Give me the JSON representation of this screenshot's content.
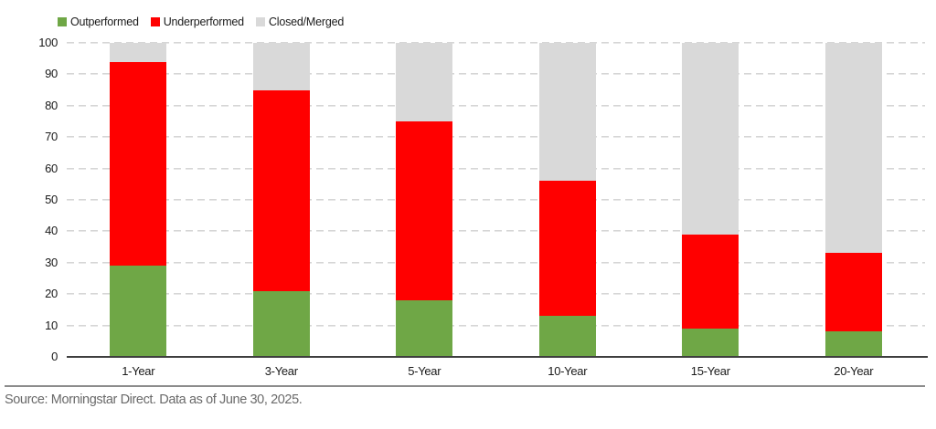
{
  "chart_data": {
    "type": "bar",
    "stacked": true,
    "title": "",
    "xlabel": "",
    "ylabel": "",
    "categories": [
      "1-Year",
      "3-Year",
      "5-Year",
      "10-Year",
      "15-Year",
      "20-Year"
    ],
    "series": [
      {
        "name": "Outperformed",
        "color": "#6FA746",
        "values": [
          29,
          21,
          18,
          13,
          9,
          8
        ]
      },
      {
        "name": "Underperformed",
        "color": "#FF0000",
        "values": [
          65,
          64,
          57,
          43,
          30,
          25
        ]
      },
      {
        "name": "Closed/Merged",
        "color": "#D9D9D9",
        "values": [
          6,
          15,
          25,
          44,
          61,
          67
        ]
      }
    ],
    "ylim": [
      0,
      100
    ],
    "yticks": [
      0,
      10,
      20,
      30,
      40,
      50,
      60,
      70,
      80,
      90,
      100
    ],
    "grid": "horizontal-dashed",
    "legend_position": "top-left"
  },
  "footer": {
    "source_note": "Source: Morningstar Direct. Data as of June 30, 2025."
  },
  "colors": {
    "background": "#FFFFFF",
    "axis_line": "#3F3F3F",
    "gridline": "#D6D6D6",
    "tick_text": "#1A1A1A",
    "separator": "#8C8C8C",
    "source_text": "#6A6A6A"
  }
}
